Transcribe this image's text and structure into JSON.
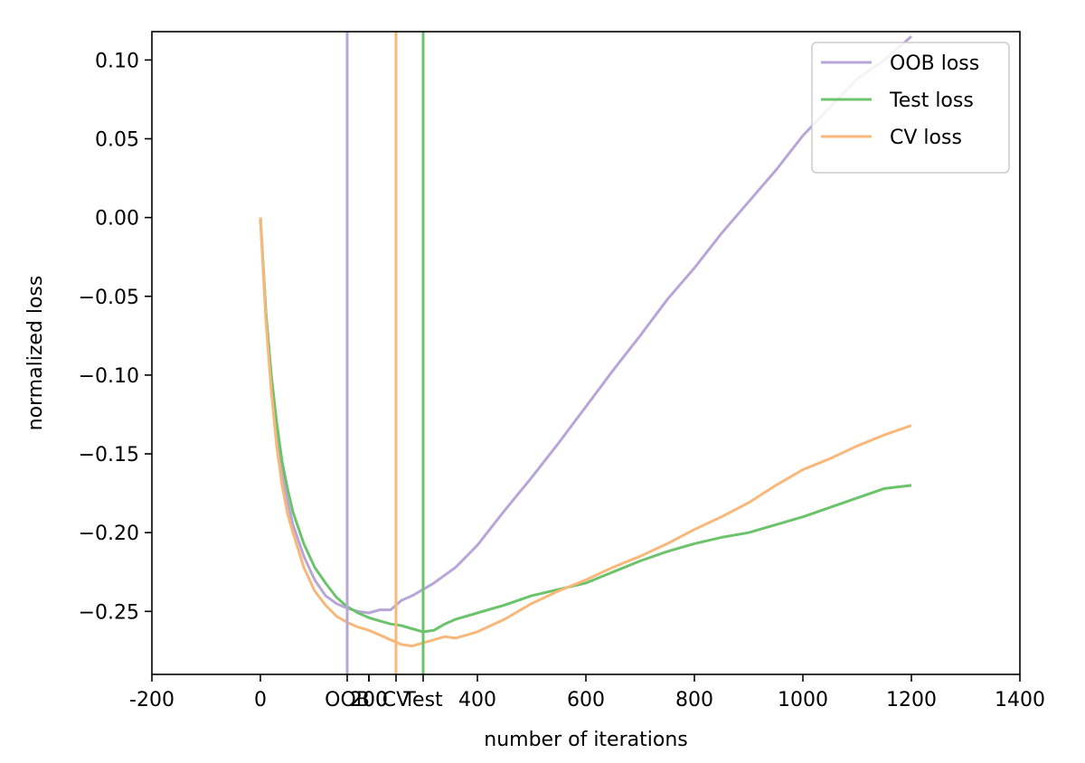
{
  "chart_data": {
    "type": "line",
    "xlabel": "number of iterations",
    "ylabel": "normalized loss",
    "xlim": [
      -200,
      1400
    ],
    "ylim": [
      -0.29,
      0.118
    ],
    "x_ticks": [
      -200,
      0,
      200,
      400,
      600,
      800,
      1000,
      1200,
      1400
    ],
    "x_tick_labels": [
      "-200",
      "0",
      "200",
      "400",
      "600",
      "800",
      "1000",
      "1200",
      "1400"
    ],
    "y_ticks": [
      0.1,
      0.05,
      0.0,
      -0.05,
      -0.1,
      -0.15,
      -0.2,
      -0.25
    ],
    "y_tick_labels": [
      "0.10",
      "0.05",
      "0.00",
      "−0.05",
      "−0.10",
      "−0.15",
      "−0.20",
      "−0.25"
    ],
    "grid": false,
    "legend_placement": "top-right",
    "series": [
      {
        "name": "OOB loss",
        "color": "#b8a6d8",
        "x": [
          0,
          10,
          20,
          30,
          40,
          50,
          60,
          80,
          100,
          120,
          140,
          160,
          180,
          200,
          220,
          240,
          260,
          280,
          300,
          320,
          340,
          360,
          380,
          400,
          450,
          500,
          550,
          600,
          650,
          700,
          750,
          800,
          850,
          900,
          950,
          1000,
          1050,
          1100,
          1150,
          1200
        ],
        "y": [
          0.0,
          -0.06,
          -0.1,
          -0.135,
          -0.16,
          -0.18,
          -0.195,
          -0.215,
          -0.23,
          -0.24,
          -0.245,
          -0.248,
          -0.25,
          -0.251,
          -0.249,
          -0.249,
          -0.243,
          -0.24,
          -0.236,
          -0.232,
          -0.227,
          -0.222,
          -0.215,
          -0.208,
          -0.186,
          -0.165,
          -0.143,
          -0.12,
          -0.097,
          -0.075,
          -0.052,
          -0.032,
          -0.01,
          0.01,
          0.03,
          0.052,
          0.07,
          0.088,
          0.1,
          0.115
        ]
      },
      {
        "name": "Test loss",
        "color": "#6cc36c",
        "x": [
          0,
          10,
          20,
          30,
          40,
          50,
          60,
          80,
          100,
          120,
          140,
          160,
          180,
          200,
          220,
          240,
          260,
          280,
          300,
          320,
          340,
          360,
          380,
          400,
          450,
          500,
          550,
          600,
          650,
          700,
          750,
          800,
          850,
          900,
          950,
          1000,
          1050,
          1100,
          1150,
          1200
        ],
        "y": [
          0.0,
          -0.06,
          -0.1,
          -0.13,
          -0.155,
          -0.172,
          -0.187,
          -0.207,
          -0.222,
          -0.232,
          -0.241,
          -0.247,
          -0.251,
          -0.254,
          -0.256,
          -0.258,
          -0.259,
          -0.261,
          -0.263,
          -0.262,
          -0.258,
          -0.255,
          -0.253,
          -0.251,
          -0.246,
          -0.24,
          -0.236,
          -0.232,
          -0.225,
          -0.218,
          -0.212,
          -0.207,
          -0.203,
          -0.2,
          -0.195,
          -0.19,
          -0.184,
          -0.178,
          -0.172,
          -0.17
        ]
      },
      {
        "name": "CV loss",
        "color": "#f9b87a",
        "x": [
          0,
          10,
          20,
          30,
          40,
          50,
          60,
          80,
          100,
          120,
          140,
          160,
          180,
          200,
          220,
          240,
          260,
          280,
          300,
          320,
          340,
          360,
          380,
          400,
          450,
          500,
          550,
          600,
          650,
          700,
          750,
          800,
          850,
          900,
          950,
          1000,
          1050,
          1100,
          1150,
          1200
        ],
        "y": [
          0.0,
          -0.065,
          -0.11,
          -0.145,
          -0.17,
          -0.188,
          -0.2,
          -0.222,
          -0.237,
          -0.246,
          -0.253,
          -0.257,
          -0.26,
          -0.262,
          -0.265,
          -0.268,
          -0.271,
          -0.272,
          -0.27,
          -0.268,
          -0.266,
          -0.267,
          -0.265,
          -0.263,
          -0.255,
          -0.245,
          -0.237,
          -0.23,
          -0.222,
          -0.215,
          -0.207,
          -0.198,
          -0.19,
          -0.181,
          -0.17,
          -0.16,
          -0.153,
          -0.145,
          -0.138,
          -0.132
        ]
      }
    ],
    "vlines": [
      {
        "name": "OOB",
        "x": 160,
        "color": "#b8a6d8"
      },
      {
        "name": "CV",
        "x": 250,
        "color": "#f9b87a"
      },
      {
        "name": "Test",
        "x": 300,
        "color": "#6cc36c"
      }
    ],
    "extra_tick_labels": [
      {
        "x": 160,
        "label": "OOB"
      },
      {
        "x": 200,
        "label": "200"
      },
      {
        "x": 250,
        "label": "CV"
      },
      {
        "x": 300,
        "label": "Test"
      }
    ]
  }
}
